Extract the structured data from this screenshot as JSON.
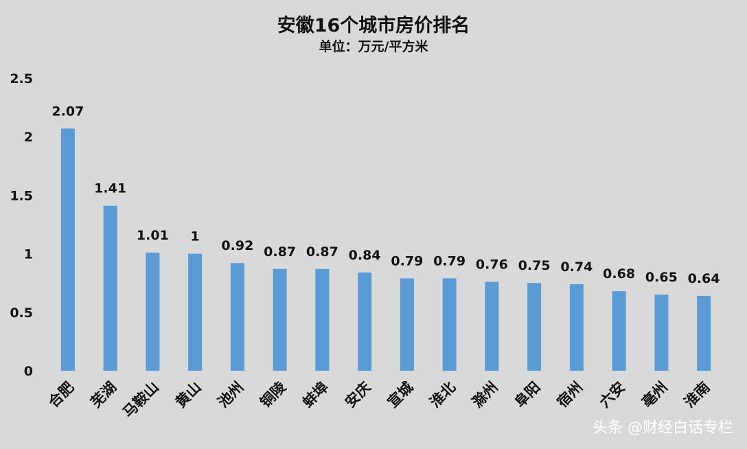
{
  "chart_data": {
    "type": "bar",
    "title": "安徽16个城市房价排名",
    "subtitle": "单位：万元/平方米",
    "categories": [
      "合肥",
      "芜湖",
      "马鞍山",
      "黄山",
      "池州",
      "铜陵",
      "蚌埠",
      "安庆",
      "宣城",
      "淮北",
      "滁州",
      "阜阳",
      "宿州",
      "六安",
      "亳州",
      "淮南"
    ],
    "values": [
      2.07,
      1.41,
      1.01,
      1,
      0.92,
      0.87,
      0.87,
      0.84,
      0.79,
      0.79,
      0.76,
      0.75,
      0.74,
      0.68,
      0.65,
      0.64
    ],
    "value_labels": [
      "2.07",
      "1.41",
      "1.01",
      "1",
      "0.92",
      "0.87",
      "0.87",
      "0.84",
      "0.79",
      "0.79",
      "0.76",
      "0.75",
      "0.74",
      "0.68",
      "0.65",
      "0.64"
    ],
    "ylim": [
      0,
      2.5
    ],
    "yticks": [
      "0",
      "0.5",
      "1",
      "1.5",
      "2",
      "2.5"
    ],
    "xlabel": "",
    "ylabel": "",
    "grid": false,
    "bar_color": "#5b9bd5",
    "background": "#d9d9d9"
  },
  "watermark": "头条 @财经白话专栏"
}
